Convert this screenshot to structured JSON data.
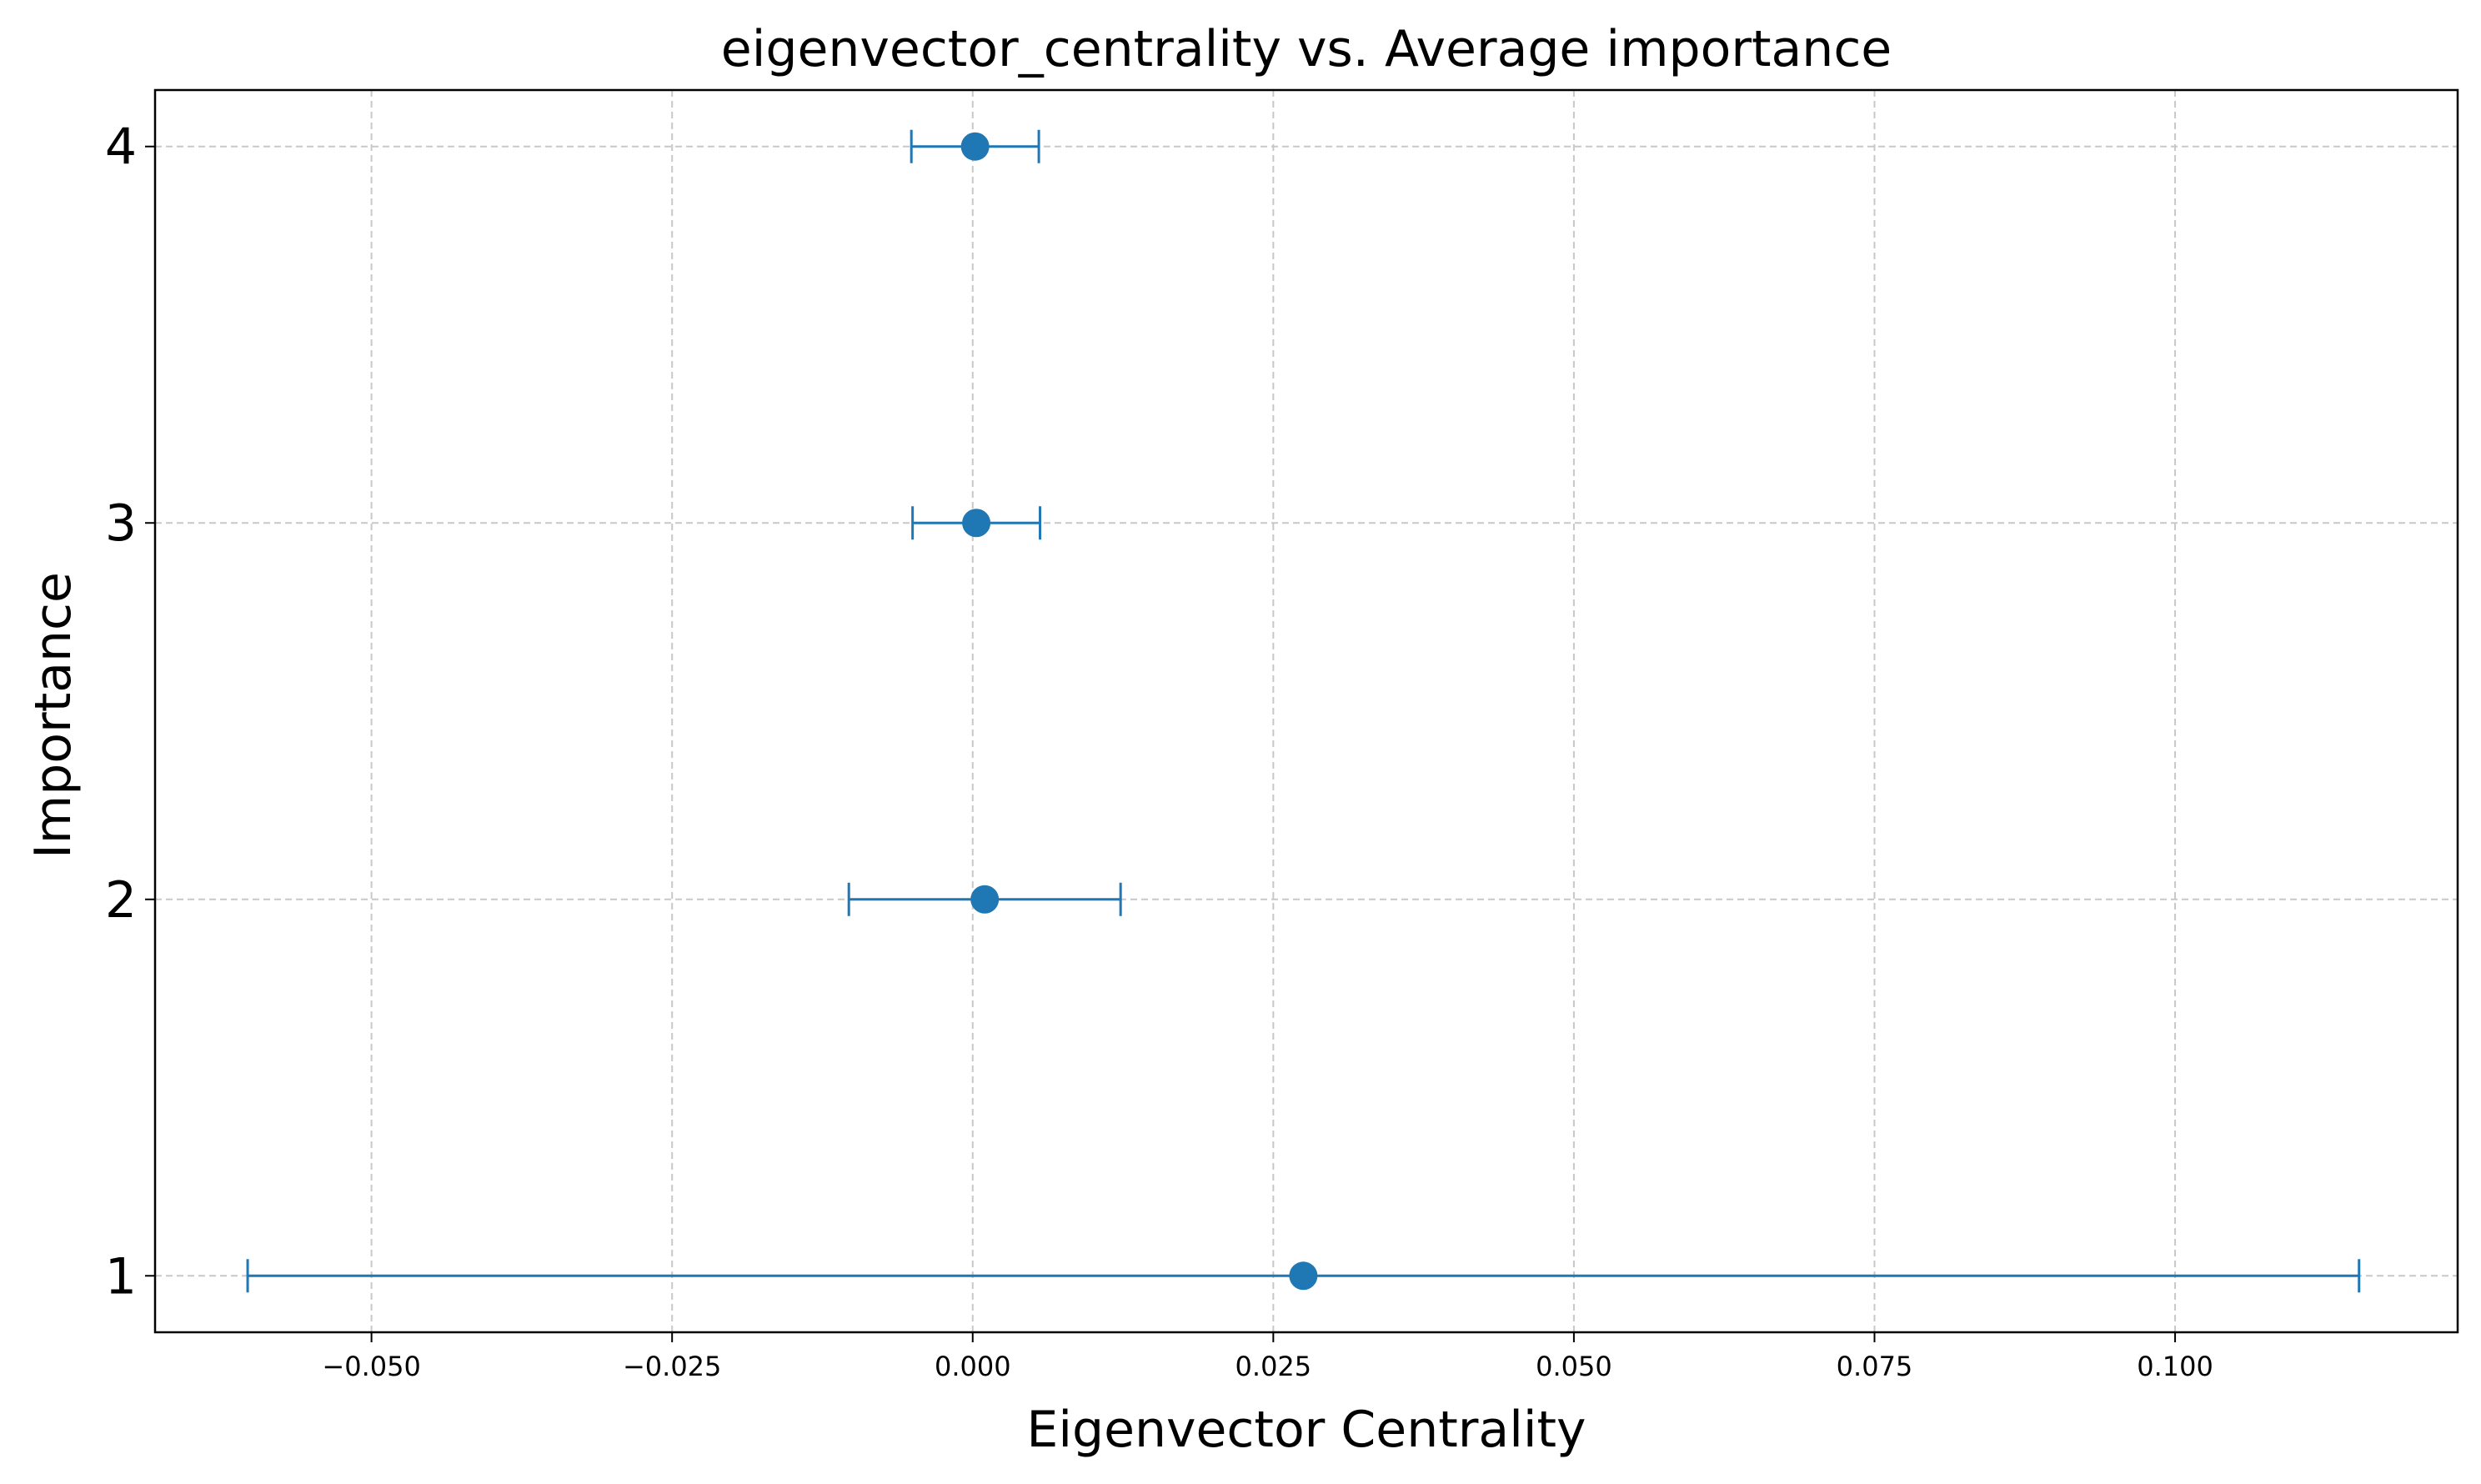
{
  "chart_data": {
    "type": "errorbar",
    "title": "eigenvector_centrality vs. Average importance",
    "xlabel": "Eigenvector Centrality",
    "ylabel": "Importance",
    "xlim": [
      -0.068,
      0.1235
    ],
    "ylim": [
      0.85,
      4.15
    ],
    "xticks": [
      -0.05,
      -0.025,
      0.0,
      0.025,
      0.05,
      0.075,
      0.1
    ],
    "xtick_labels": [
      "−0.050",
      "−0.025",
      "0.000",
      "0.025",
      "0.050",
      "0.075",
      "0.100"
    ],
    "yticks": [
      1,
      2,
      3,
      4
    ],
    "ytick_labels": [
      "1",
      "2",
      "3",
      "4"
    ],
    "grid": true,
    "color": "#1f77b4",
    "grid_color": "#c8c8c8",
    "points": [
      {
        "y": 1,
        "x": 0.0275,
        "xerr": 0.0878
      },
      {
        "y": 2,
        "x": 0.001,
        "xerr": 0.0113
      },
      {
        "y": 3,
        "x": 0.0003,
        "xerr": 0.0053
      },
      {
        "y": 4,
        "x": 0.0002,
        "xerr": 0.0053
      }
    ]
  }
}
